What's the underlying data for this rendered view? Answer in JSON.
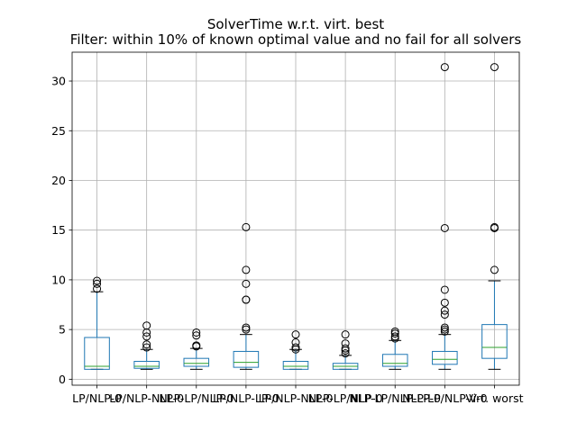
{
  "chart_data": {
    "type": "box",
    "title": "SolverTime w.r.t. virt. best",
    "subtitle": "Filter: within 10% of known optimal value and no fail for all solvers",
    "xlabel": "",
    "ylabel": "",
    "ylim": [
      -0.6,
      32.9
    ],
    "yticks": [
      0,
      5,
      10,
      15,
      20,
      25,
      30
    ],
    "grid": true,
    "colors": {
      "box": "#1f77b4",
      "median": "#2ca02c",
      "whisker": "#000000",
      "flier": "#000000",
      "grid": "#b0b0b0"
    },
    "categories": [
      "LP/NLP-0",
      "LP/NLP-NLP-0",
      "NLP-LP/NLP-0",
      "LP/NLP-LP-0",
      "LP/NLP-NLP-0",
      "NLP-LP/NLP-0",
      "NLP-LP/NLP-LP-0",
      "NLP-LP/NLP-V-0",
      "Virt. worst"
    ],
    "boxes": [
      {
        "whislo": 1.0,
        "q1": 1.0,
        "med": 1.3,
        "q3": 4.2,
        "whishi": 8.8,
        "fliers": [
          9.1,
          9.6,
          9.9
        ]
      },
      {
        "whislo": 1.0,
        "q1": 1.1,
        "med": 1.3,
        "q3": 1.8,
        "whishi": 3.0,
        "fliers": [
          3.2,
          3.5,
          4.3,
          4.7,
          5.4
        ]
      },
      {
        "whislo": 1.0,
        "q1": 1.3,
        "med": 1.6,
        "q3": 2.1,
        "whishi": 3.1,
        "fliers": [
          3.3,
          3.4,
          4.4,
          4.7
        ]
      },
      {
        "whislo": 1.0,
        "q1": 1.2,
        "med": 1.7,
        "q3": 2.8,
        "whishi": 4.5,
        "fliers": [
          5.0,
          5.2,
          8.0,
          8.0,
          9.6,
          11.0,
          15.3
        ]
      },
      {
        "whislo": 1.0,
        "q1": 1.0,
        "med": 1.3,
        "q3": 1.8,
        "whishi": 3.0,
        "fliers": [
          3.0,
          3.2,
          3.7,
          4.5
        ]
      },
      {
        "whislo": 1.0,
        "q1": 1.0,
        "med": 1.3,
        "q3": 1.6,
        "whishi": 2.4,
        "fliers": [
          2.6,
          2.9,
          3.1,
          3.6,
          4.5
        ]
      },
      {
        "whislo": 1.0,
        "q1": 1.3,
        "med": 1.6,
        "q3": 2.5,
        "whishi": 3.9,
        "fliers": [
          4.1,
          4.3,
          4.6,
          4.8
        ]
      },
      {
        "whislo": 1.0,
        "q1": 1.5,
        "med": 2.0,
        "q3": 2.8,
        "whishi": 4.5,
        "fliers": [
          4.8,
          5.0,
          5.2,
          6.5,
          6.9,
          7.7,
          9.0,
          15.2,
          31.4
        ]
      },
      {
        "whislo": 1.0,
        "q1": 2.1,
        "med": 3.2,
        "q3": 5.5,
        "whishi": 9.9,
        "fliers": [
          11.0,
          15.2,
          15.3,
          31.4
        ]
      }
    ]
  }
}
